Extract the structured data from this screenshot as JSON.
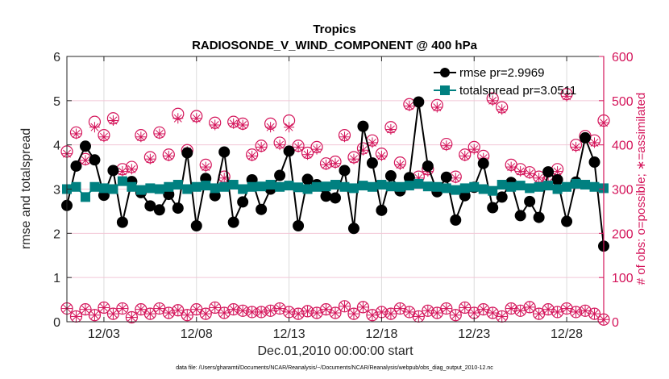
{
  "chart_data": {
    "type": "line",
    "title": "Tropics",
    "subtitle": "RADIOSONDE_V_WIND_COMPONENT @ 400 hPa",
    "xlabel": "Dec.01,2010 00:00:00 start",
    "ylabel": "rmse and totalspread",
    "y2label": "# of obs: o=possible; ∗=assimilated",
    "footnote": "data file: /Users/gharamti/Documents/NCAR/Reanalysis/~/Documents/NCAR/Reanalysis/webpub/obs_diag_output_2010-12.nc",
    "grid": true,
    "legend_position": "top-right",
    "xlim": [
      1.0,
      30.0
    ],
    "ylim": [
      0,
      6
    ],
    "y2lim": [
      0,
      600
    ],
    "x_unit": "day of December 2010",
    "x_ticks": [
      3,
      8,
      13,
      18,
      23,
      28
    ],
    "x_tick_labels": [
      "12/03",
      "12/08",
      "12/13",
      "12/18",
      "12/23",
      "12/28"
    ],
    "y_ticks": [
      0,
      1,
      2,
      3,
      4,
      5,
      6
    ],
    "y2_ticks": [
      0,
      100,
      200,
      300,
      400,
      500,
      600
    ],
    "colors": {
      "rmse": "#000000",
      "totalspread": "#008080",
      "obs": "#d4145a"
    },
    "x": [
      1.0,
      1.5,
      2.0,
      2.5,
      3.0,
      3.5,
      4.0,
      4.5,
      5.0,
      5.5,
      6.0,
      6.5,
      7.0,
      7.5,
      8.0,
      8.5,
      9.0,
      9.5,
      10.0,
      10.5,
      11.0,
      11.5,
      12.0,
      12.5,
      13.0,
      13.5,
      14.0,
      14.5,
      15.0,
      15.5,
      16.0,
      16.5,
      17.0,
      17.5,
      18.0,
      18.5,
      19.0,
      19.5,
      20.0,
      20.5,
      21.0,
      21.5,
      22.0,
      22.5,
      23.0,
      23.5,
      24.0,
      24.5,
      25.0,
      25.5,
      26.0,
      26.5,
      27.0,
      27.5,
      28.0,
      28.5,
      29.0,
      29.5,
      30.0
    ],
    "series": [
      {
        "name": "rmse pr=2.9969",
        "marker": "circle",
        "values": [
          2.63,
          3.52,
          3.97,
          3.66,
          2.86,
          3.42,
          2.25,
          3.17,
          2.92,
          2.62,
          2.53,
          2.88,
          2.57,
          3.82,
          2.17,
          3.24,
          2.85,
          3.84,
          2.25,
          2.71,
          3.21,
          2.54,
          3.0,
          3.31,
          3.86,
          2.17,
          3.22,
          3.1,
          2.84,
          2.8,
          3.42,
          2.11,
          4.42,
          3.59,
          2.52,
          3.3,
          2.96,
          3.26,
          4.97,
          3.52,
          2.94,
          3.27,
          2.3,
          2.85,
          3.04,
          3.58,
          2.58,
          2.82,
          3.15,
          2.4,
          2.72,
          2.36,
          3.39,
          3.21,
          2.27,
          3.16,
          4.16,
          3.61,
          1.71
        ]
      },
      {
        "name": "totalspread pr=3.0511",
        "marker": "square",
        "values": [
          3.0,
          3.05,
          2.82,
          3.05,
          3.02,
          3.0,
          3.18,
          3.05,
          2.98,
          3.02,
          3.0,
          3.05,
          3.1,
          3.0,
          3.05,
          3.08,
          3.02,
          3.05,
          3.1,
          3.0,
          3.05,
          3.06,
          3.1,
          3.05,
          3.08,
          3.04,
          3.0,
          3.05,
          3.06,
          3.1,
          3.05,
          3.02,
          3.08,
          3.05,
          3.1,
          3.06,
          3.05,
          3.08,
          3.12,
          3.06,
          3.05,
          3.02,
          2.98,
          3.02,
          3.05,
          3.0,
          2.96,
          3.1,
          3.05,
          3.08,
          3.02,
          3.05,
          3.08,
          3.0,
          3.05,
          3.12,
          3.1,
          3.05,
          3.02
        ]
      },
      {
        "name": "obs possible",
        "axis": "right",
        "marker": "circle-open",
        "values": [
          385,
          428,
          368,
          452,
          422,
          460,
          345,
          350,
          422,
          372,
          428,
          378,
          470,
          388,
          465,
          355,
          450,
          328,
          452,
          448,
          378,
          398,
          448,
          405,
          455,
          398,
          382,
          395,
          358,
          362,
          422,
          372,
          392,
          410,
          380,
          440,
          360,
          492,
          328,
          345,
          490,
          402,
          328,
          378,
          395,
          375,
          505,
          485,
          355,
          345,
          338,
          328,
          320,
          345,
          515,
          400,
          420,
          410,
          455
        ]
      },
      {
        "name": "obs assimilated",
        "axis": "right",
        "marker": "asterisk",
        "values": [
          380,
          425,
          365,
          440,
          418,
          455,
          340,
          345,
          418,
          368,
          425,
          375,
          460,
          385,
          460,
          350,
          445,
          325,
          448,
          445,
          375,
          395,
          440,
          400,
          440,
          395,
          378,
          390,
          355,
          358,
          418,
          368,
          388,
          405,
          375,
          435,
          355,
          488,
          325,
          340,
          485,
          398,
          325,
          375,
          390,
          370,
          500,
          480,
          350,
          340,
          335,
          325,
          315,
          340,
          510,
          395,
          415,
          405,
          450
        ]
      },
      {
        "name": "obs low possible",
        "axis": "right",
        "marker": "circle-open",
        "values": [
          30,
          12,
          28,
          15,
          32,
          18,
          30,
          10,
          28,
          18,
          30,
          20,
          26,
          15,
          28,
          18,
          32,
          20,
          28,
          25,
          22,
          22,
          25,
          30,
          22,
          18,
          24,
          20,
          28,
          20,
          35,
          18,
          33,
          15,
          22,
          18,
          30,
          22,
          12,
          25,
          20,
          30,
          15,
          32,
          20,
          28,
          20,
          12,
          30,
          25,
          33,
          18,
          28,
          22,
          30,
          22,
          25,
          18,
          5
        ]
      }
    ]
  }
}
